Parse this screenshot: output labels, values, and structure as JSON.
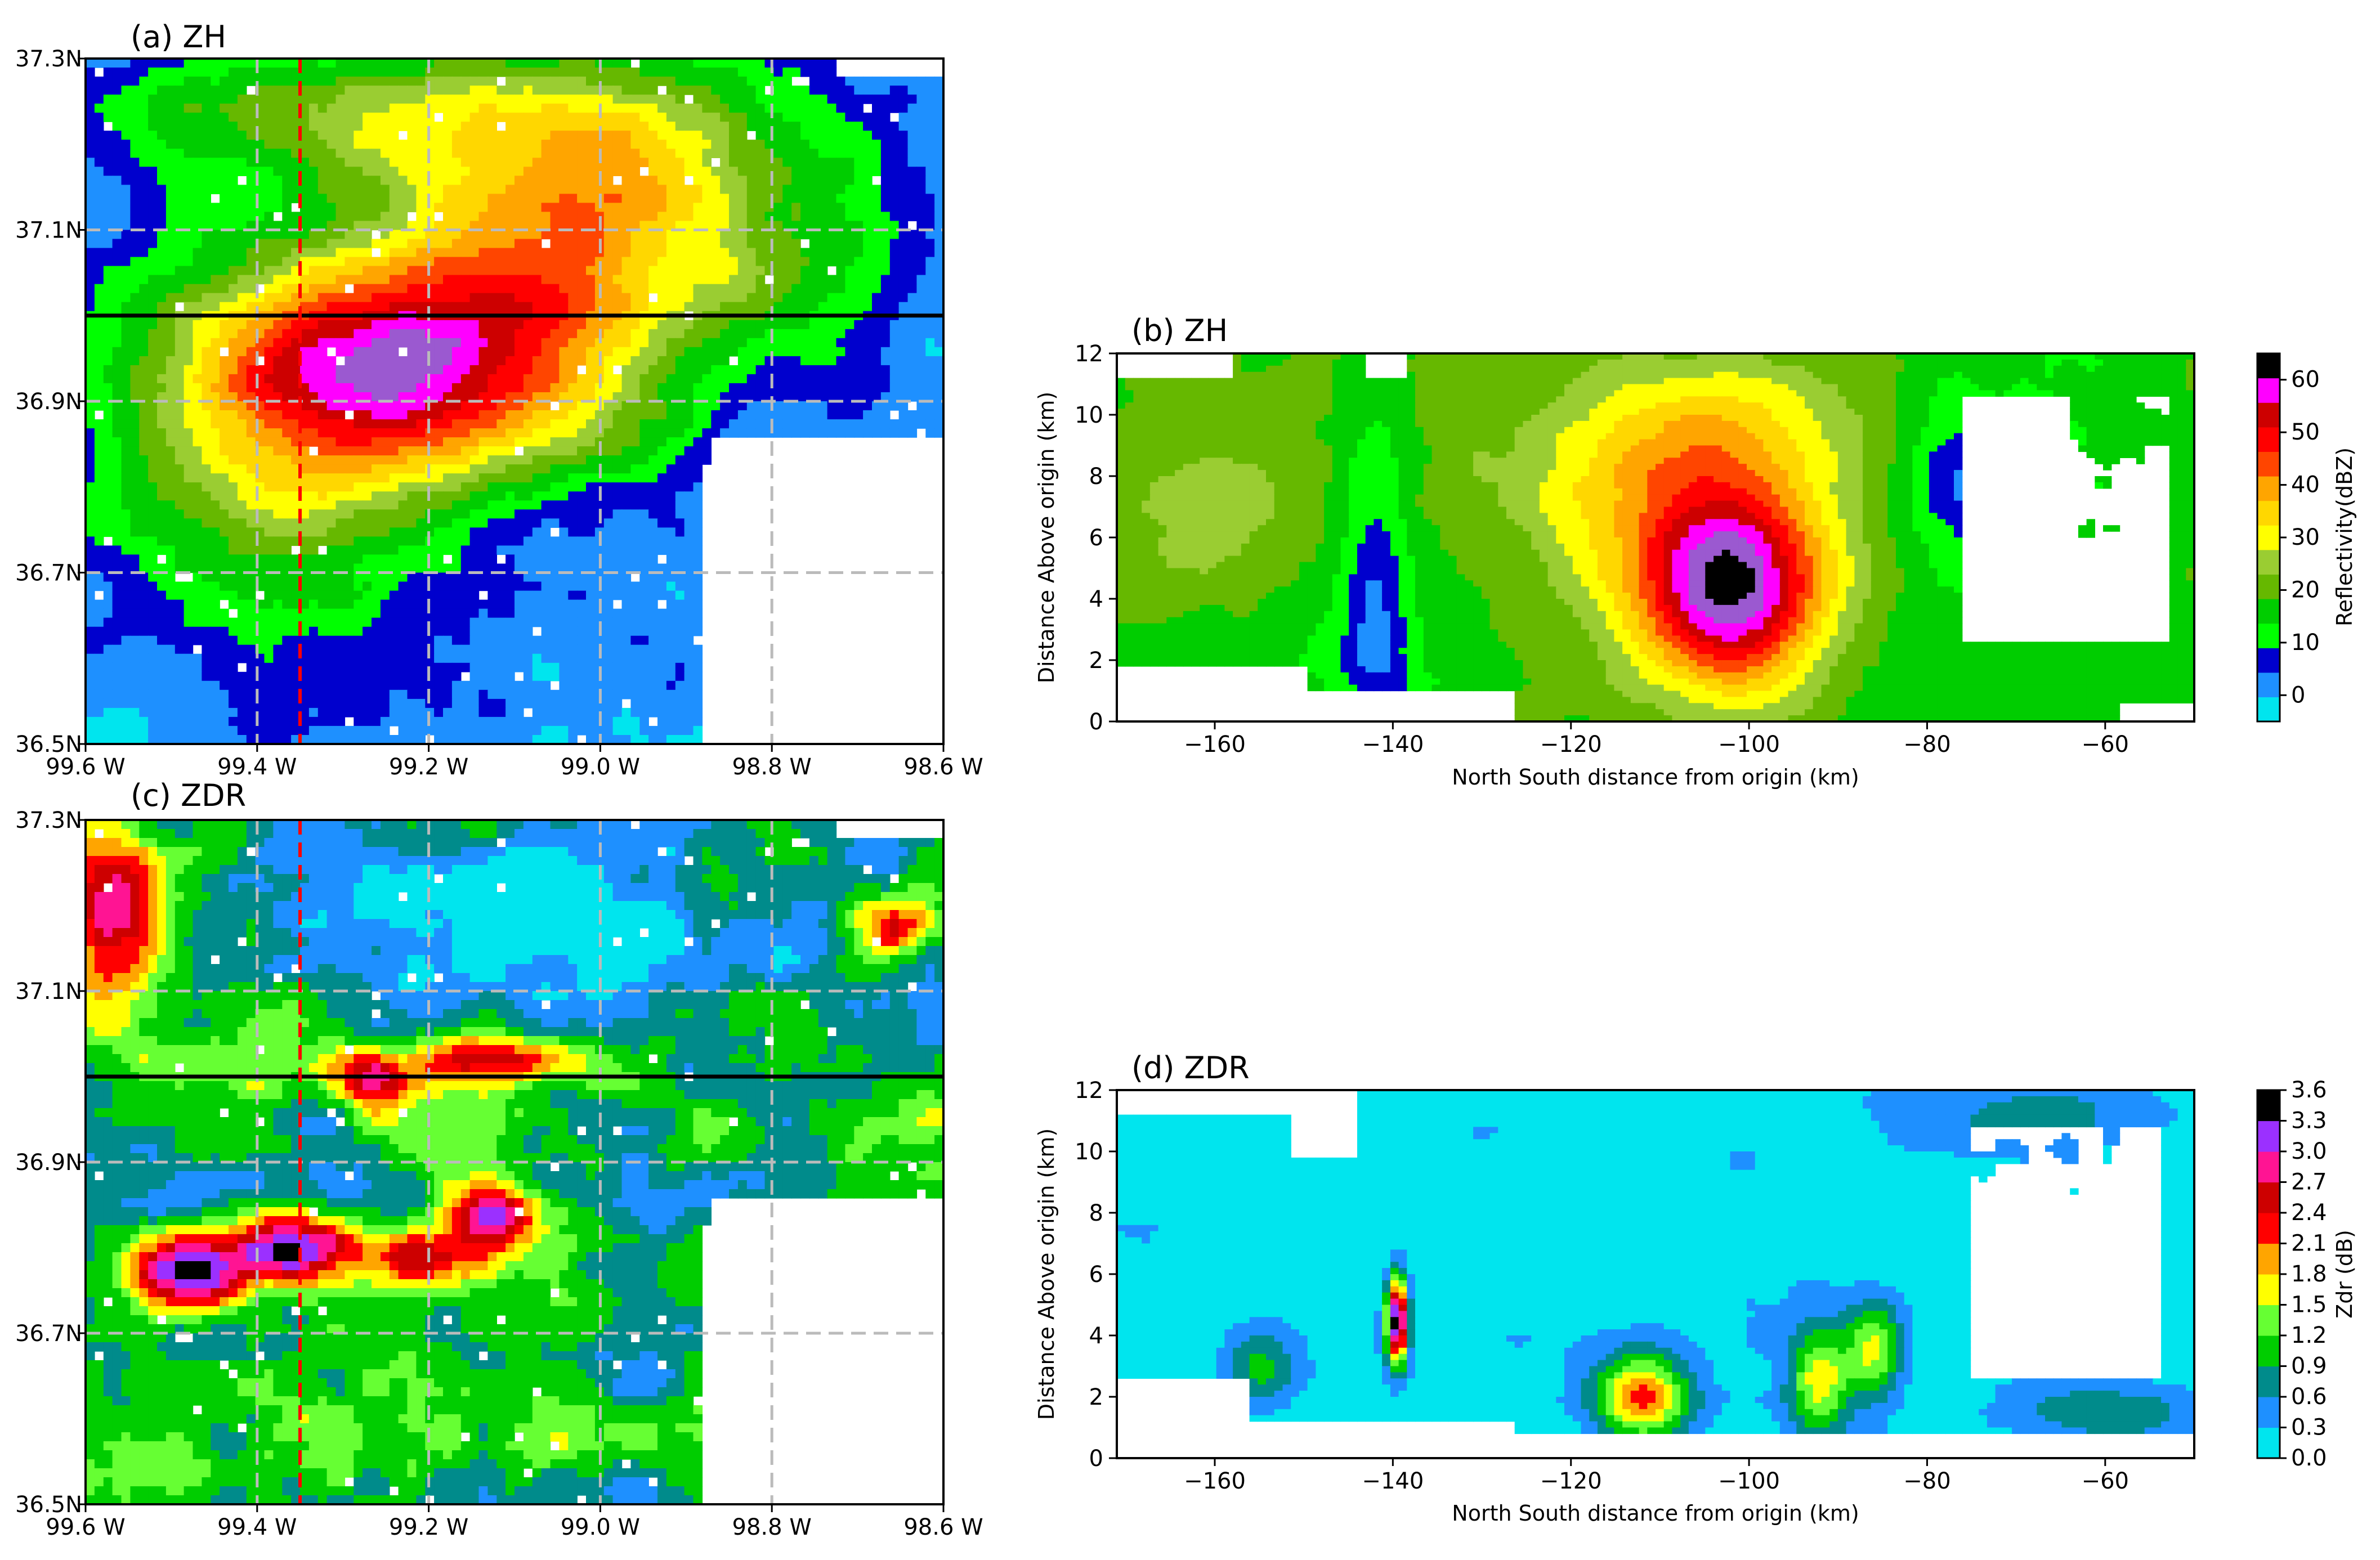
{
  "colors": {
    "zh_scale": [
      "#00e5ee",
      "#1e90ff",
      "#0000cd",
      "#00ff00",
      "#00cd00",
      "#66b800",
      "#9acd32",
      "#ffff00",
      "#ffd700",
      "#ffa500",
      "#ff4500",
      "#ff0000",
      "#cd0000",
      "#ff00ff",
      "#9b59d0",
      "#000000"
    ],
    "zdr_scale": [
      "#00e5ee",
      "#1e90ff",
      "#008b8b",
      "#00cd00",
      "#66ff33",
      "#ffff00",
      "#ffa500",
      "#ff0000",
      "#cd0000",
      "#ff1493",
      "#9b30ff",
      "#000000"
    ],
    "crosssection_line": "#000000",
    "meridian_line": "#ff0000",
    "grid": "#bbbbbb"
  },
  "chart_data": [
    {
      "id": "a",
      "type": "heatmap",
      "title": "(a) ZH",
      "field": "ZH",
      "x_ticks": [
        "99.6 W",
        "99.4 W",
        "99.2 W",
        "99.0 W",
        "98.8 W",
        "98.6 W"
      ],
      "x_tick_values": [
        -99.6,
        -99.4,
        -99.2,
        -99.0,
        -98.8,
        -98.6
      ],
      "y_ticks": [
        "36.5N",
        "36.7N",
        "36.9N",
        "37.1N",
        "37.3N"
      ],
      "y_tick_values": [
        36.5,
        36.7,
        36.9,
        37.1,
        37.3
      ],
      "xlim": [
        -99.6,
        -98.6
      ],
      "ylim": [
        36.5,
        37.3
      ],
      "grid": true,
      "cross_section_lat": 37.0,
      "marker_lon": -99.35
    },
    {
      "id": "b",
      "type": "heatmap",
      "title": "(b) ZH",
      "field": "ZH",
      "xlabel": "North South distance from origin (km)",
      "ylabel": "Distance Above origin (km)",
      "x_ticks": [
        "−160",
        "−140",
        "−120",
        "−100",
        "−80",
        "−60"
      ],
      "x_tick_values": [
        -160,
        -140,
        -120,
        -100,
        -80,
        -60
      ],
      "y_ticks": [
        "0",
        "2",
        "4",
        "6",
        "8",
        "10",
        "12"
      ],
      "y_tick_values": [
        0,
        2,
        4,
        6,
        8,
        10,
        12
      ],
      "xlim": [
        -171,
        -50
      ],
      "ylim": [
        0,
        12
      ],
      "colorbar": {
        "label": "Reflectivity(dBZ)",
        "ticks": [
          "0",
          "10",
          "20",
          "30",
          "40",
          "50",
          "60"
        ],
        "tick_values": [
          0,
          10,
          20,
          30,
          40,
          50,
          60
        ],
        "range": [
          -5,
          65
        ]
      }
    },
    {
      "id": "c",
      "type": "heatmap",
      "title": "(c) ZDR",
      "field": "ZDR",
      "x_ticks": [
        "99.6 W",
        "99.4 W",
        "99.2 W",
        "99.0 W",
        "98.8 W",
        "98.6 W"
      ],
      "x_tick_values": [
        -99.6,
        -99.4,
        -99.2,
        -99.0,
        -98.8,
        -98.6
      ],
      "y_ticks": [
        "36.5N",
        "36.7N",
        "36.9N",
        "37.1N",
        "37.3N"
      ],
      "y_tick_values": [
        36.5,
        36.7,
        36.9,
        37.1,
        37.3
      ],
      "xlim": [
        -99.6,
        -98.6
      ],
      "ylim": [
        36.5,
        37.3
      ],
      "grid": true,
      "cross_section_lat": 37.0,
      "marker_lon": -99.35
    },
    {
      "id": "d",
      "type": "heatmap",
      "title": "(d) ZDR",
      "field": "ZDR",
      "xlabel": "North South distance from origin (km)",
      "ylabel": "Distance Above origin (km)",
      "x_ticks": [
        "−160",
        "−140",
        "−120",
        "−100",
        "−80",
        "−60"
      ],
      "x_tick_values": [
        -160,
        -140,
        -120,
        -100,
        -80,
        -60
      ],
      "y_ticks": [
        "0",
        "2",
        "4",
        "6",
        "8",
        "10",
        "12"
      ],
      "y_tick_values": [
        0,
        2,
        4,
        6,
        8,
        10,
        12
      ],
      "xlim": [
        -171,
        -50
      ],
      "ylim": [
        0,
        12
      ],
      "colorbar": {
        "label": "Zdr (dB)",
        "ticks": [
          "0.0",
          "0.3",
          "0.6",
          "0.9",
          "1.2",
          "1.5",
          "1.8",
          "2.1",
          "2.4",
          "2.7",
          "3.0",
          "3.3",
          "3.6"
        ],
        "tick_values": [
          0.0,
          0.3,
          0.6,
          0.9,
          1.2,
          1.5,
          1.8,
          2.1,
          2.4,
          2.7,
          3.0,
          3.3,
          3.6
        ],
        "range": [
          0.0,
          3.6
        ]
      }
    }
  ]
}
